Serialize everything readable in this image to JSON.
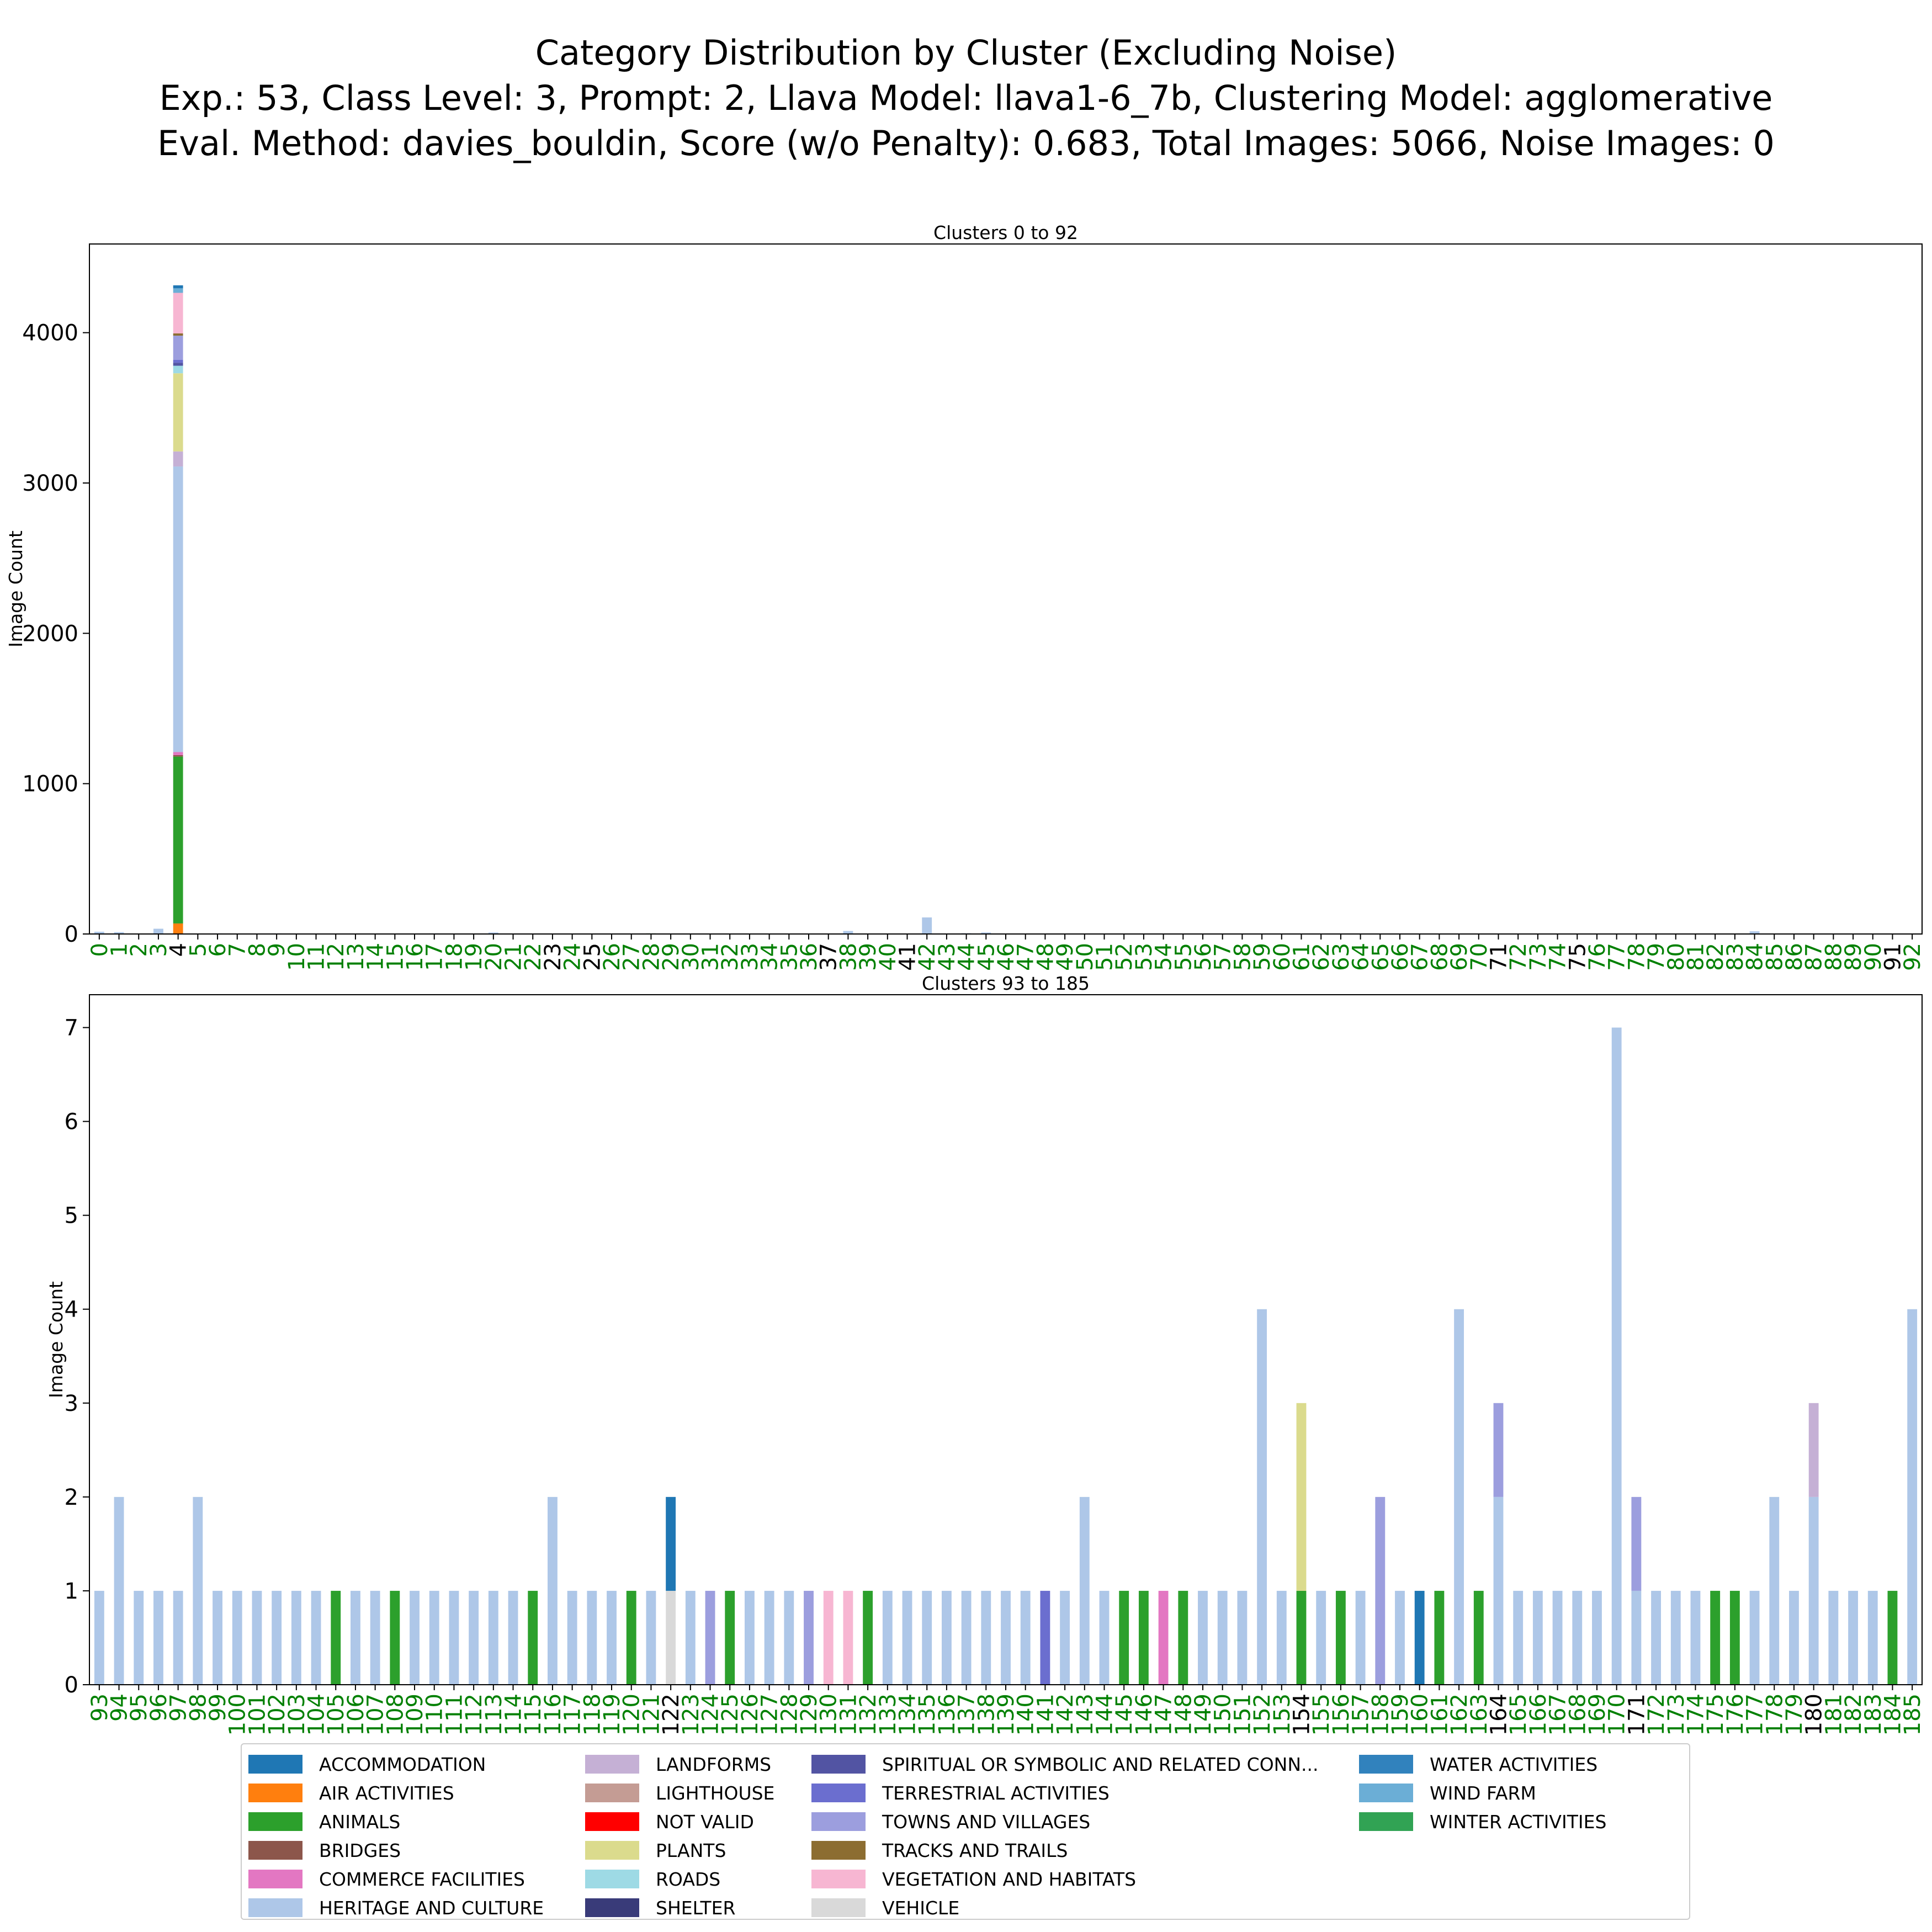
{
  "title_lines": [
    "Category Distribution by Cluster (Excluding Noise)",
    "Exp.: 53, Class Level: 3, Prompt: 2, Llava Model: llava1-6_7b, Clustering Model: agglomerative",
    "Eval. Method: davies_bouldin, Score (w/o Penalty): 0.683, Total Images: 5066, Noise Images: 0"
  ],
  "colors": {
    "tick_green": "#008000",
    "tick_black": "#000000"
  },
  "categories": [
    {
      "name": "ACCOMMODATION",
      "color": "#1f77b4"
    },
    {
      "name": "AIR ACTIVITIES",
      "color": "#ff7f0e"
    },
    {
      "name": "ANIMALS",
      "color": "#2ca02c"
    },
    {
      "name": "BRIDGES",
      "color": "#8c564b"
    },
    {
      "name": "COMMERCE FACILITIES",
      "color": "#e377c2"
    },
    {
      "name": "HERITAGE AND CULTURE",
      "color": "#aec7e8"
    },
    {
      "name": "LANDFORMS",
      "color": "#c5b0d5"
    },
    {
      "name": "LIGHTHOUSE",
      "color": "#c49c94"
    },
    {
      "name": "NOT VALID",
      "color": "#ff0000"
    },
    {
      "name": "PLANTS",
      "color": "#dbdb8d"
    },
    {
      "name": "ROADS",
      "color": "#9edae5"
    },
    {
      "name": "SHELTER",
      "color": "#393b79"
    },
    {
      "name": "SPIRITUAL OR SYMBOLIC AND RELATED CONN...",
      "color": "#5254a3"
    },
    {
      "name": "TERRESTRIAL ACTIVITIES",
      "color": "#6b6ecf"
    },
    {
      "name": "TOWNS AND VILLAGES",
      "color": "#9c9ede"
    },
    {
      "name": "TRACKS AND TRAILS",
      "color": "#8c6d31"
    },
    {
      "name": "VEGETATION AND HABITATS",
      "color": "#f7b6d2"
    },
    {
      "name": "VEHICLE",
      "color": "#d9d9d9"
    },
    {
      "name": "WATER ACTIVITIES",
      "color": "#3182bd"
    },
    {
      "name": "WIND FARM",
      "color": "#6baed6"
    },
    {
      "name": "WINTER ACTIVITIES",
      "color": "#31a354"
    }
  ],
  "chart_data": [
    {
      "type": "bar",
      "stacked": true,
      "title": "Clusters 0 to 92",
      "ylabel": "Image Count",
      "ylim": [
        0,
        4590
      ],
      "yticks": [
        0,
        1000,
        2000,
        3000,
        4000
      ],
      "x_start": 0,
      "x_end": 92,
      "black_ticks": [
        4,
        23,
        25,
        37,
        41,
        71,
        75,
        91
      ],
      "stacks": {
        "0": [
          [
            "HERITAGE AND CULTURE",
            15
          ]
        ],
        "1": [
          [
            "HERITAGE AND CULTURE",
            12
          ]
        ],
        "3": [
          [
            "HERITAGE AND CULTURE",
            35
          ]
        ],
        "4": [
          [
            "AIR ACTIVITIES",
            70
          ],
          [
            "ANIMALS",
            1110
          ],
          [
            "BRIDGES",
            10
          ],
          [
            "COMMERCE FACILITIES",
            20
          ],
          [
            "HERITAGE AND CULTURE",
            1900
          ],
          [
            "LANDFORMS",
            100
          ],
          [
            "PLANTS",
            520
          ],
          [
            "ROADS",
            50
          ],
          [
            "SPIRITUAL OR SYMBOLIC AND RELATED CONN...",
            20
          ],
          [
            "TERRESTRIAL ACTIVITIES",
            20
          ],
          [
            "TOWNS AND VILLAGES",
            160
          ],
          [
            "TRACKS AND TRAILS",
            15
          ],
          [
            "VEGETATION AND HABITATS",
            270
          ],
          [
            "WIND FARM",
            30
          ],
          [
            "ACCOMMODATION",
            20
          ]
        ],
        "6": [
          [
            "HERITAGE AND CULTURE",
            4
          ]
        ],
        "7": [
          [
            "HERITAGE AND CULTURE",
            3
          ]
        ],
        "9": [
          [
            "HERITAGE AND CULTURE",
            4
          ]
        ],
        "14": [
          [
            "HERITAGE AND CULTURE",
            3
          ]
        ],
        "17": [
          [
            "HERITAGE AND CULTURE",
            4
          ]
        ],
        "20": [
          [
            "HERITAGE AND CULTURE",
            10
          ]
        ],
        "22": [
          [
            "HERITAGE AND CULTURE",
            3
          ]
        ],
        "28": [
          [
            "ANIMALS",
            4
          ]
        ],
        "36": [
          [
            "HERITAGE AND CULTURE",
            3
          ]
        ],
        "38": [
          [
            "HERITAGE AND CULTURE",
            20
          ]
        ],
        "42": [
          [
            "HERITAGE AND CULTURE",
            110
          ]
        ],
        "44": [
          [
            "HERITAGE AND CULTURE",
            5
          ]
        ],
        "45": [
          [
            "HERITAGE AND CULTURE",
            10
          ]
        ],
        "52": [
          [
            "HERITAGE AND CULTURE",
            3
          ]
        ],
        "65": [
          [
            "HERITAGE AND CULTURE",
            3
          ]
        ],
        "72": [
          [
            "HERITAGE AND CULTURE",
            3
          ]
        ],
        "80": [
          [
            "HERITAGE AND CULTURE",
            3
          ]
        ],
        "84": [
          [
            "HERITAGE AND CULTURE",
            18
          ]
        ],
        "89": [
          [
            "HERITAGE AND CULTURE",
            3
          ]
        ]
      }
    },
    {
      "type": "bar",
      "stacked": true,
      "title": "Clusters 93 to 185",
      "ylabel": "Image Count",
      "ylim": [
        0,
        7.35
      ],
      "yticks": [
        0,
        1,
        2,
        3,
        4,
        5,
        6,
        7
      ],
      "x_start": 93,
      "x_end": 185,
      "black_ticks": [
        122,
        154,
        164,
        171,
        180
      ],
      "default_category": "HERITAGE AND CULTURE",
      "default_values": [
        1,
        2,
        1,
        1,
        1,
        2,
        1,
        1,
        1,
        1,
        1,
        1,
        1,
        1,
        1,
        1,
        1,
        1,
        1,
        1,
        1,
        1,
        1,
        2,
        1,
        1,
        1,
        1,
        1,
        2,
        1,
        1,
        1,
        1,
        1,
        1,
        2,
        1,
        1,
        1,
        1,
        1,
        1,
        1,
        1,
        1,
        1,
        1,
        1,
        1,
        2,
        1,
        1,
        1,
        1,
        1,
        1,
        1,
        1,
        4,
        1,
        3,
        1,
        1,
        1,
        2,
        1,
        1,
        1,
        4,
        1,
        3,
        1,
        1,
        1,
        1,
        1,
        7,
        2,
        1,
        1,
        1,
        1,
        1,
        1,
        2,
        1,
        3,
        1,
        1,
        1,
        1,
        4
      ],
      "stacks": {
        "105": [
          [
            "ANIMALS",
            1
          ]
        ],
        "108": [
          [
            "ANIMALS",
            1
          ]
        ],
        "115": [
          [
            "ANIMALS",
            1
          ]
        ],
        "120": [
          [
            "ANIMALS",
            1
          ]
        ],
        "122": [
          [
            "VEHICLE",
            1
          ],
          [
            "ACCOMMODATION",
            1
          ]
        ],
        "124": [
          [
            "TOWNS AND VILLAGES",
            1
          ]
        ],
        "125": [
          [
            "ANIMALS",
            1
          ]
        ],
        "129": [
          [
            "TOWNS AND VILLAGES",
            1
          ]
        ],
        "130": [
          [
            "VEGETATION AND HABITATS",
            1
          ]
        ],
        "131": [
          [
            "VEGETATION AND HABITATS",
            1
          ]
        ],
        "132": [
          [
            "ANIMALS",
            1
          ]
        ],
        "141": [
          [
            "TERRESTRIAL ACTIVITIES",
            1
          ]
        ],
        "145": [
          [
            "ANIMALS",
            1
          ]
        ],
        "146": [
          [
            "ANIMALS",
            1
          ]
        ],
        "147": [
          [
            "COMMERCE FACILITIES",
            1
          ]
        ],
        "148": [
          [
            "ANIMALS",
            1
          ]
        ],
        "154": [
          [
            "ANIMALS",
            1
          ],
          [
            "PLANTS",
            2
          ]
        ],
        "156": [
          [
            "ANIMALS",
            1
          ]
        ],
        "158": [
          [
            "TOWNS AND VILLAGES",
            2
          ]
        ],
        "160": [
          [
            "ACCOMMODATION",
            1
          ]
        ],
        "161": [
          [
            "ANIMALS",
            1
          ]
        ],
        "163": [
          [
            "ANIMALS",
            1
          ]
        ],
        "164": [
          [
            "HERITAGE AND CULTURE",
            2
          ],
          [
            "TOWNS AND VILLAGES",
            1
          ]
        ],
        "171": [
          [
            "HERITAGE AND CULTURE",
            1
          ],
          [
            "TOWNS AND VILLAGES",
            1
          ]
        ],
        "175": [
          [
            "ANIMALS",
            1
          ]
        ],
        "176": [
          [
            "ANIMALS",
            1
          ]
        ],
        "180": [
          [
            "HERITAGE AND CULTURE",
            2
          ],
          [
            "LANDFORMS",
            1
          ]
        ],
        "184": [
          [
            "ANIMALS",
            1
          ]
        ]
      }
    }
  ]
}
